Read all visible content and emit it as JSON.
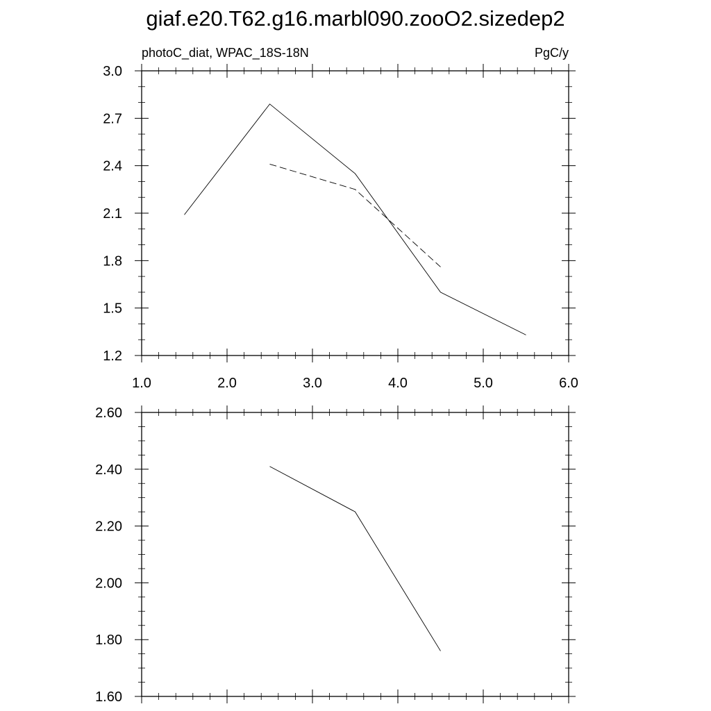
{
  "title": "giaf.e20.T62.g16.marbl090.zooO2.sizedep2",
  "chart_data": [
    {
      "type": "line",
      "left_label": "photoC_diat, WPAC_18S-18N",
      "right_label": "PgC/y",
      "xlim": [
        1.0,
        6.0
      ],
      "ylim": [
        1.2,
        3.0
      ],
      "x_ticks": [
        "1.0",
        "2.0",
        "3.0",
        "4.0",
        "5.0",
        "6.0"
      ],
      "y_ticks": [
        "1.2",
        "1.5",
        "1.8",
        "2.1",
        "2.4",
        "2.7",
        "3.0"
      ],
      "series": [
        {
          "style": "solid",
          "x": [
            1.5,
            2.5,
            3.5,
            4.5,
            5.5
          ],
          "y": [
            2.09,
            2.79,
            2.35,
            1.6,
            1.33
          ]
        },
        {
          "style": "dashed",
          "x": [
            2.5,
            3.5,
            4.5
          ],
          "y": [
            2.41,
            2.25,
            1.76
          ]
        }
      ]
    },
    {
      "type": "line",
      "xlim": [
        1.0,
        6.0
      ],
      "ylim": [
        1.6,
        2.6
      ],
      "x_ticks": [],
      "y_ticks": [
        "1.60",
        "1.80",
        "2.00",
        "2.20",
        "2.40",
        "2.60"
      ],
      "series": [
        {
          "style": "solid",
          "x": [
            2.5,
            3.5,
            4.5
          ],
          "y": [
            2.41,
            2.25,
            1.76
          ]
        }
      ]
    }
  ]
}
